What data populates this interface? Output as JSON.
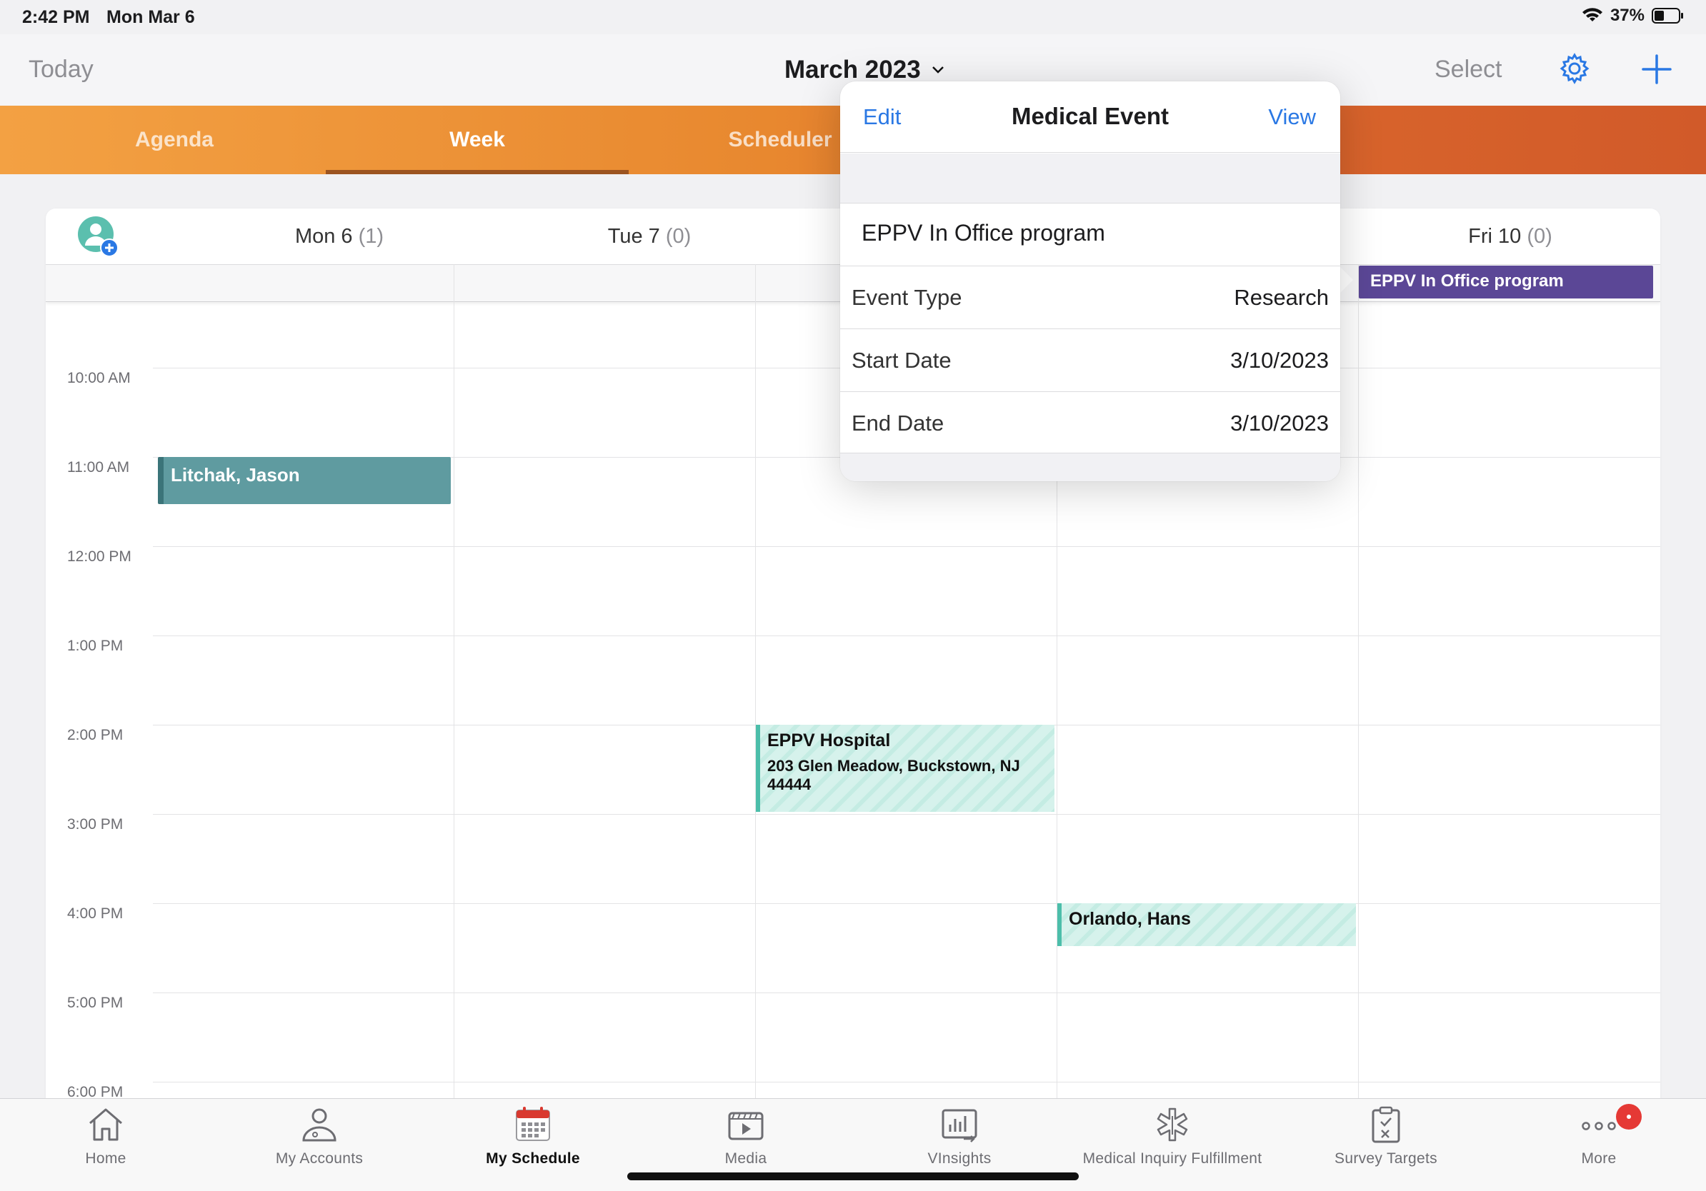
{
  "status": {
    "time": "2:42 PM",
    "date": "Mon Mar 6",
    "battery": "37%"
  },
  "header": {
    "today_label": "Today",
    "month_label": "March 2023",
    "select_label": "Select",
    "icons": [
      "gear-icon",
      "plus-icon",
      "chevron-down-icon"
    ]
  },
  "tabs": [
    {
      "label": "Agenda",
      "active": false
    },
    {
      "label": "Week",
      "active": true
    },
    {
      "label": "Scheduler",
      "active": false
    }
  ],
  "calendar": {
    "days": [
      {
        "label": "Mon 6",
        "count": "(1)"
      },
      {
        "label": "Tue 7",
        "count": "(0)"
      },
      {
        "label": "Fri 10",
        "count": "(0)"
      }
    ],
    "times": [
      "10:00 AM",
      "11:00 AM",
      "12:00 PM",
      "1:00 PM",
      "2:00 PM",
      "3:00 PM",
      "4:00 PM",
      "5:00 PM",
      "6:00 PM"
    ],
    "events": {
      "litchak": "Litchak, Jason",
      "hospital_title": "EPPV Hospital",
      "hospital_address": "203 Glen Meadow, Buckstown, NJ 44444",
      "orlando": "Orlando, Hans",
      "allday_fri": "EPPV In Office program"
    }
  },
  "popover": {
    "edit_label": "Edit",
    "title": "Medical Event",
    "view_label": "View",
    "event_name": "EPPV In Office program",
    "rows": [
      {
        "label": "Event Type",
        "value": "Research"
      },
      {
        "label": "Start Date",
        "value": "3/10/2023"
      },
      {
        "label": "End Date",
        "value": "3/10/2023"
      }
    ]
  },
  "bottom_nav": [
    {
      "label": "Home",
      "icon": "home-icon",
      "active": false
    },
    {
      "label": "My Accounts",
      "icon": "person-icon",
      "active": false
    },
    {
      "label": "My Schedule",
      "icon": "calendar-icon",
      "active": true
    },
    {
      "label": "Media",
      "icon": "media-icon",
      "active": false
    },
    {
      "label": "VInsights",
      "icon": "chart-icon",
      "active": false
    },
    {
      "label": "Medical Inquiry Fulfillment",
      "icon": "medical-icon",
      "active": false
    },
    {
      "label": "Survey Targets",
      "icon": "clipboard-icon",
      "active": false
    },
    {
      "label": "More",
      "icon": "more-icon",
      "active": false
    }
  ],
  "colors": {
    "accent": "#2a78e4",
    "tab_gradient_start": "#f3a143",
    "tab_gradient_end": "#d15a29",
    "event_teal": "#5f9ba0",
    "event_purple": "#5b4796",
    "badge": "#e53935"
  }
}
